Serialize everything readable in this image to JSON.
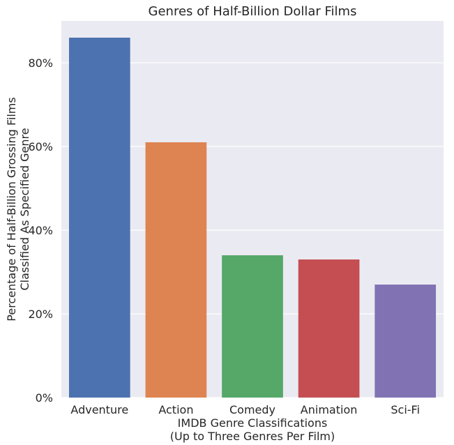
{
  "chart_data": {
    "type": "bar",
    "title": "Genres of Half-Billion Dollar Films",
    "xlabel": [
      "IMDB Genre Classifications",
      "(Up to Three Genres Per Film)"
    ],
    "ylabel": [
      "Percentage of Half-Billion Grossing Films",
      "Classified As Specified Genre"
    ],
    "categories": [
      "Adventure",
      "Action",
      "Comedy",
      "Animation",
      "Sci-Fi"
    ],
    "values": [
      0.86,
      0.61,
      0.34,
      0.33,
      0.27
    ],
    "colors": [
      "#4c72b0",
      "#dd8452",
      "#55a868",
      "#c44e52",
      "#8172b3"
    ],
    "ylim": [
      0,
      0.9
    ],
    "yticks": [
      0,
      0.2,
      0.4,
      0.6,
      0.8
    ],
    "ytick_labels": [
      "0%",
      "20%",
      "40%",
      "60%",
      "80%"
    ],
    "grid": true,
    "background": "#eaeaf2"
  }
}
